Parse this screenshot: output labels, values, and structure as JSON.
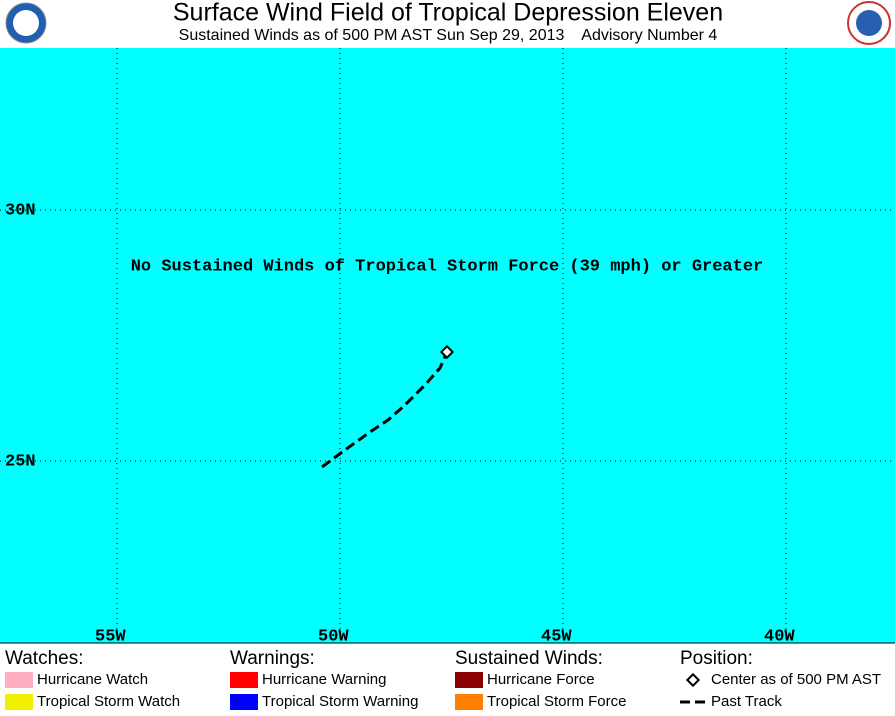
{
  "header": {
    "title": "Surface Wind Field of Tropical Depression Eleven",
    "subtitle": "Sustained Winds as of 500 PM AST Sun Sep 29, 2013    Advisory Number 4"
  },
  "map": {
    "message": "No Sustained Winds of Tropical Storm Force (39 mph) or Greater",
    "lat_labels": [
      "30N",
      "25N"
    ],
    "lon_labels": [
      "55W",
      "50W",
      "45W",
      "40W"
    ]
  },
  "legend": {
    "watches": {
      "title": "Watches:",
      "items": [
        "Hurricane Watch",
        "Tropical Storm Watch"
      ]
    },
    "warnings": {
      "title": "Warnings:",
      "items": [
        "Hurricane Warning",
        "Tropical Storm Warning"
      ]
    },
    "winds": {
      "title": "Sustained Winds:",
      "items": [
        "Hurricane Force",
        "Tropical Storm Force"
      ]
    },
    "position": {
      "title": "Position:",
      "items": [
        "Center as of 500 PM AST",
        "Past Track"
      ]
    }
  }
}
